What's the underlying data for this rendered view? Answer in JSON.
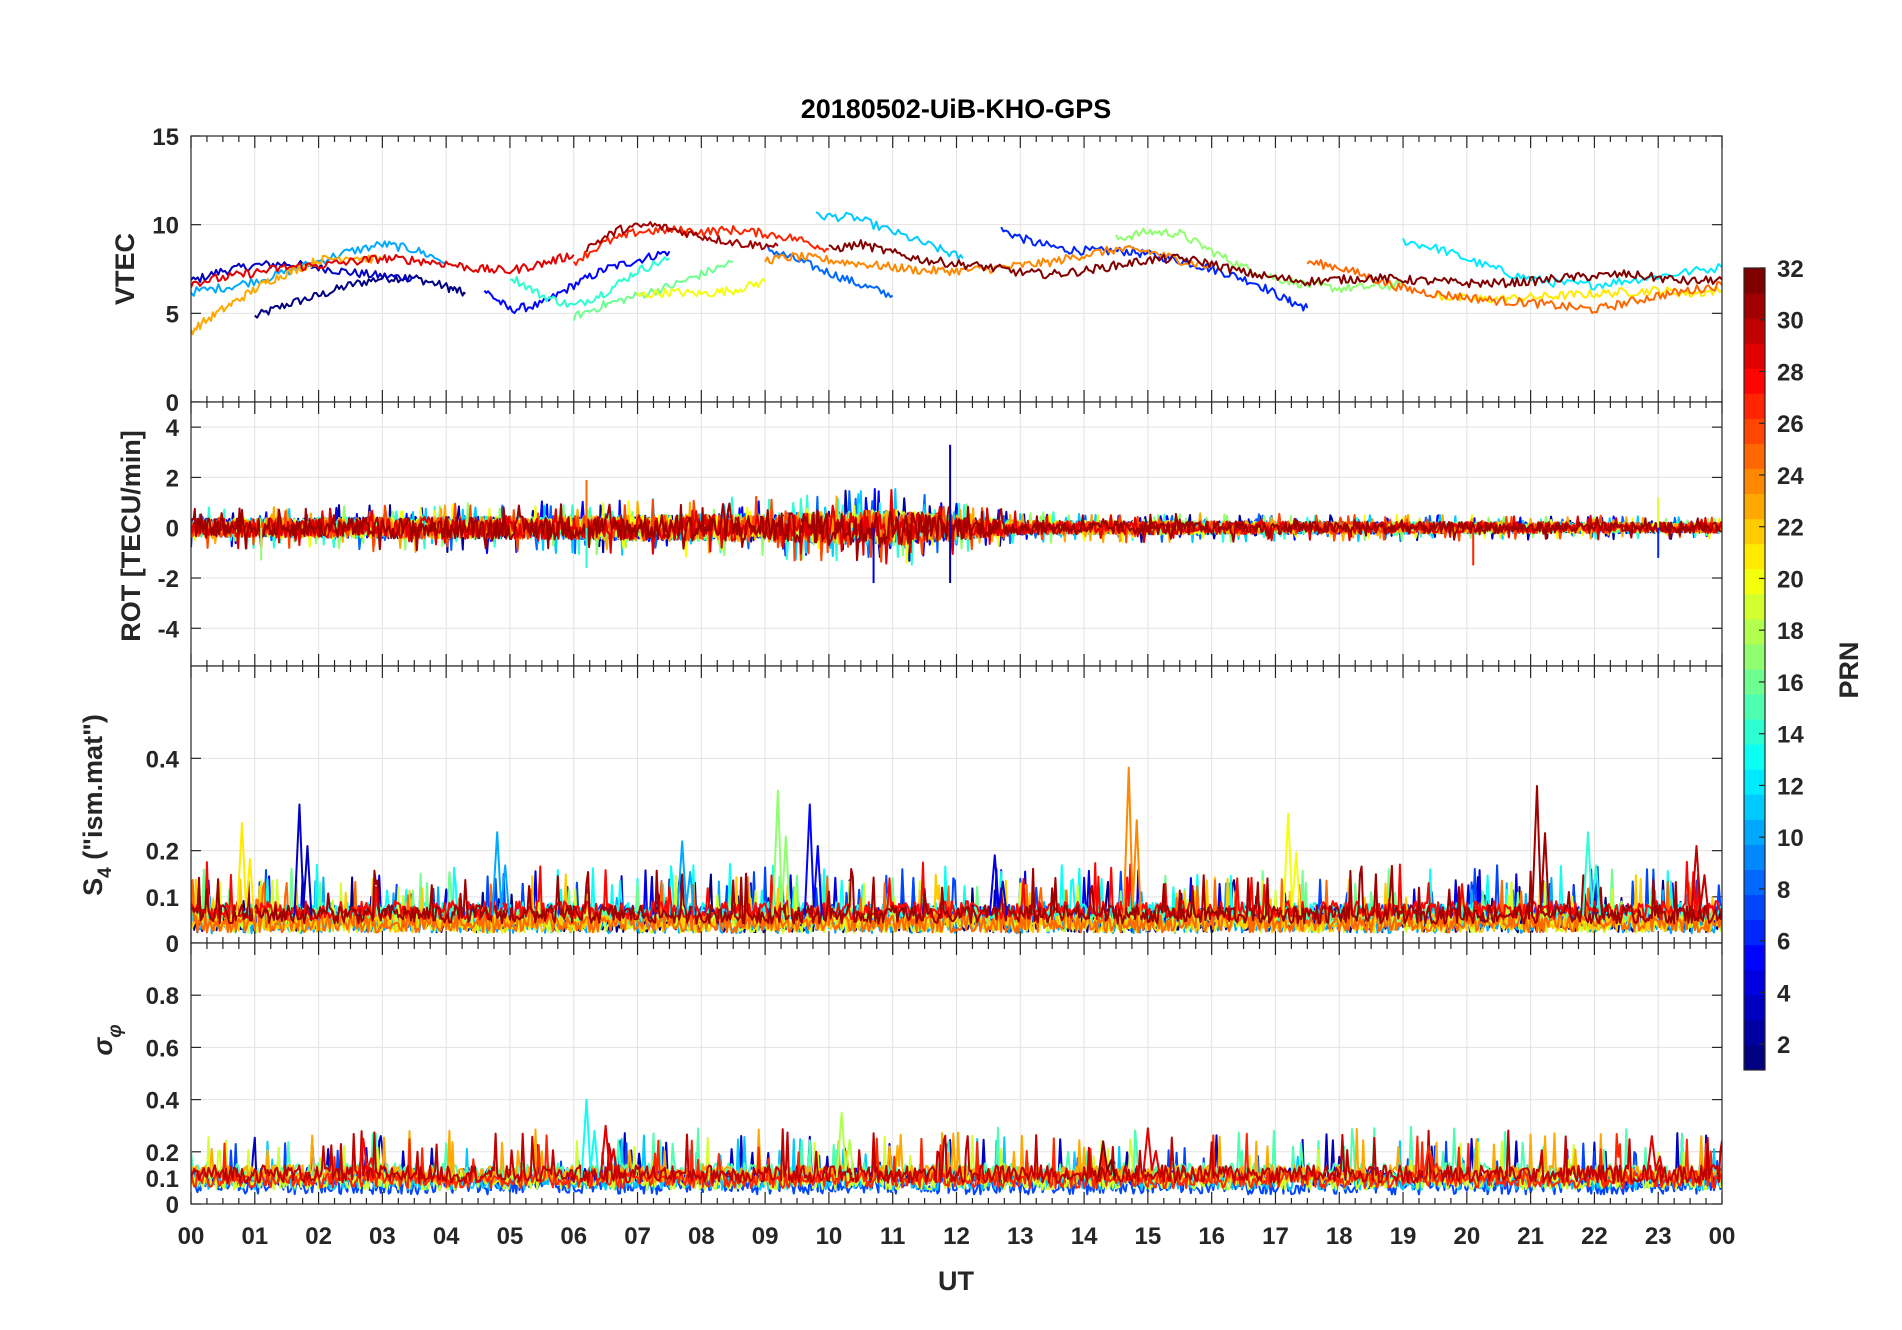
{
  "title": "20180502-UiB-KHO-GPS",
  "x_axis": {
    "label": "UT",
    "ticks": [
      "00",
      "01",
      "02",
      "03",
      "04",
      "05",
      "06",
      "07",
      "08",
      "09",
      "10",
      "11",
      "12",
      "13",
      "14",
      "15",
      "16",
      "17",
      "18",
      "19",
      "20",
      "21",
      "22",
      "23",
      "00"
    ],
    "range_hours": [
      0,
      24
    ]
  },
  "colorbar": {
    "label": "PRN",
    "ticks": [
      2,
      4,
      6,
      8,
      10,
      12,
      14,
      16,
      18,
      20,
      22,
      24,
      26,
      28,
      30,
      32
    ],
    "range": [
      1,
      32
    ],
    "colormap": "jet"
  },
  "chart_data": [
    {
      "type": "line",
      "panel": "vtec",
      "ylabel": "VTEC",
      "ylim": [
        0,
        15
      ],
      "yticks": [
        0,
        5,
        10,
        15
      ],
      "grid": true,
      "series": [
        {
          "prn": 1,
          "x": [
            1.0,
            1.5,
            2.0,
            2.5,
            3.0,
            3.5,
            4.0,
            4.3
          ],
          "y": [
            4.8,
            5.5,
            6.0,
            6.6,
            7.0,
            7.0,
            6.5,
            6.1
          ]
        },
        {
          "prn": 3,
          "x": [
            0.0,
            0.5,
            1.0,
            1.5,
            2.0,
            2.5,
            3.0,
            3.5
          ],
          "y": [
            6.8,
            7.4,
            7.7,
            7.8,
            7.6,
            7.3,
            7.1,
            7.0
          ]
        },
        {
          "prn": 5,
          "x": [
            4.6,
            5.0,
            5.5,
            6.0,
            6.5,
            7.0,
            7.5
          ],
          "y": [
            6.3,
            5.2,
            5.5,
            6.6,
            7.5,
            8.0,
            8.5
          ]
        },
        {
          "prn": 6,
          "x": [
            12.7,
            13.2,
            13.7,
            14.2,
            14.7,
            15.2,
            15.7,
            16.2,
            16.7,
            17.2,
            17.5
          ],
          "y": [
            9.7,
            9.0,
            8.6,
            8.5,
            8.5,
            8.2,
            7.8,
            7.3,
            6.7,
            5.7,
            5.3
          ]
        },
        {
          "prn": 8,
          "x": [
            9.0,
            9.5,
            10.0,
            10.5,
            11.0
          ],
          "y": [
            8.7,
            8.0,
            7.3,
            6.6,
            6.0
          ]
        },
        {
          "prn": 10,
          "x": [
            0.0,
            0.6,
            1.2,
            1.8,
            2.4,
            3.0,
            3.5,
            4.0
          ],
          "y": [
            6.2,
            6.5,
            7.0,
            7.7,
            8.4,
            8.9,
            8.6,
            7.9
          ]
        },
        {
          "prn": 11,
          "x": [
            9.8,
            10.4,
            11.0,
            11.6,
            12.1
          ],
          "y": [
            10.5,
            10.4,
            9.6,
            8.8,
            8.1
          ]
        },
        {
          "prn": 12,
          "x": [
            19.0,
            19.6,
            20.2,
            20.8,
            21.4,
            22.0,
            22.6,
            23.2,
            24.0
          ],
          "y": [
            9.1,
            8.6,
            7.8,
            7.1,
            6.7,
            6.6,
            6.9,
            7.2,
            7.6
          ]
        },
        {
          "prn": 14,
          "x": [
            5.0,
            5.5,
            6.0,
            6.5,
            7.0,
            7.5
          ],
          "y": [
            7.1,
            6.0,
            5.4,
            6.2,
            7.4,
            8.1
          ]
        },
        {
          "prn": 17,
          "x": [
            14.5,
            15.0,
            15.5,
            16.0,
            16.5,
            17.0,
            17.5,
            18.0,
            18.5,
            19.0
          ],
          "y": [
            9.2,
            9.6,
            9.5,
            8.5,
            7.6,
            7.0,
            6.6,
            6.4,
            6.5,
            6.6
          ]
        },
        {
          "prn": 16,
          "x": [
            6.0,
            6.5,
            7.0,
            7.5,
            8.0,
            8.5
          ],
          "y": [
            4.8,
            5.5,
            6.0,
            6.5,
            7.2,
            7.9
          ]
        },
        {
          "prn": 20,
          "x": [
            7.0,
            7.5,
            8.0,
            8.5,
            9.0
          ],
          "y": [
            6.0,
            6.2,
            6.1,
            6.3,
            6.8
          ]
        },
        {
          "prn": 21,
          "x": [
            19.5,
            20.0,
            20.5,
            21.0,
            21.5,
            22.0,
            22.5,
            23.0,
            23.5,
            24.0
          ],
          "y": [
            6.0,
            5.8,
            5.8,
            5.9,
            6.0,
            6.1,
            6.2,
            6.3,
            6.1,
            6.3
          ]
        },
        {
          "prn": 23,
          "x": [
            0.0,
            0.4,
            0.8,
            1.2,
            1.6,
            2.0,
            2.5,
            3.0
          ],
          "y": [
            4.0,
            5.0,
            5.9,
            6.8,
            7.4,
            8.0,
            8.2,
            8.0
          ]
        },
        {
          "prn": 24,
          "x": [
            9.0,
            9.5,
            10.0,
            10.5,
            11.0,
            11.5,
            12.0,
            12.5,
            13.0,
            13.5,
            14.0,
            14.5,
            15.0,
            15.5,
            16.0
          ],
          "y": [
            8.0,
            8.2,
            8.0,
            7.8,
            7.6,
            7.4,
            7.4,
            7.5,
            7.7,
            7.9,
            8.3,
            8.6,
            8.5,
            8.0,
            7.6
          ]
        },
        {
          "prn": 25,
          "x": [
            17.5,
            18.0,
            18.5,
            19.0,
            19.5,
            20.0,
            20.5,
            21.0,
            21.5,
            22.0,
            22.5,
            23.0,
            23.5,
            24.0
          ],
          "y": [
            7.9,
            7.6,
            7.0,
            6.4,
            6.1,
            5.9,
            5.7,
            5.6,
            5.4,
            5.2,
            5.6,
            6.0,
            6.3,
            6.6
          ]
        },
        {
          "prn": 27,
          "x": [
            6.0,
            6.5,
            7.0,
            7.5,
            8.0,
            8.5,
            9.0,
            9.5,
            10.0
          ],
          "y": [
            7.9,
            9.0,
            9.6,
            9.7,
            9.6,
            9.7,
            9.5,
            9.2,
            8.6
          ]
        },
        {
          "prn": 29,
          "x": [
            0.0,
            0.5,
            1.0,
            1.5,
            2.0,
            2.5,
            3.0,
            3.5,
            4.0,
            4.5,
            5.0,
            5.5,
            6.0
          ],
          "y": [
            6.7,
            7.0,
            7.3,
            7.6,
            7.7,
            7.9,
            8.1,
            8.0,
            7.8,
            7.5,
            7.4,
            7.8,
            8.3
          ]
        },
        {
          "prn": 31,
          "x": [
            6.2,
            6.7,
            7.2,
            7.7,
            8.2,
            8.7,
            9.2
          ],
          "y": [
            8.7,
            9.7,
            10.0,
            9.6,
            9.2,
            8.9,
            8.8
          ]
        },
        {
          "prn": 32,
          "x": [
            10.0,
            10.5,
            11.0,
            11.5,
            12.0,
            12.5,
            13.0,
            13.5,
            14.0,
            14.5,
            15.0,
            15.5,
            16.0,
            16.5,
            17.0,
            17.5,
            18.0,
            18.5,
            19.0,
            19.5,
            20.0,
            20.5,
            21.0,
            21.5,
            22.0,
            22.5,
            23.0,
            23.5,
            24.0
          ],
          "y": [
            8.6,
            8.9,
            8.4,
            8.0,
            7.8,
            7.6,
            7.3,
            7.2,
            7.4,
            7.7,
            8.0,
            8.1,
            7.8,
            7.3,
            7.0,
            6.8,
            6.9,
            7.0,
            6.9,
            6.8,
            6.7,
            6.7,
            6.8,
            7.0,
            7.1,
            7.2,
            7.0,
            6.8,
            6.9
          ]
        }
      ]
    },
    {
      "type": "line",
      "panel": "rot",
      "ylabel": "ROT [TECU/min]",
      "ylim": [
        -5.5,
        5
      ],
      "yticks": [
        -4,
        -2,
        0,
        2,
        4
      ],
      "grid": true,
      "noise_envelope": {
        "x": [
          0,
          6,
          9,
          11,
          13,
          24
        ],
        "amplitude": [
          0.45,
          0.6,
          0.7,
          0.9,
          0.35,
          0.25
        ]
      },
      "spikes": [
        {
          "prn": 2,
          "x": 11.9,
          "y": 3.3
        },
        {
          "prn": 2,
          "x": 11.9,
          "y": -2.2
        },
        {
          "prn": 4,
          "x": 10.7,
          "y": -2.2
        },
        {
          "prn": 25,
          "x": 6.2,
          "y": 1.9
        },
        {
          "prn": 14,
          "x": 6.2,
          "y": -1.6
        },
        {
          "prn": 27,
          "x": 20.1,
          "y": -1.5
        },
        {
          "prn": 19,
          "x": 23.0,
          "y": 1.2
        },
        {
          "prn": 6,
          "x": 23.0,
          "y": -1.2
        },
        {
          "prn": 17,
          "x": 1.1,
          "y": -1.3
        }
      ]
    },
    {
      "type": "line",
      "panel": "s4",
      "ylabel": "S₄ (\"ism.mat\")",
      "ylim": [
        0,
        0.6
      ],
      "yticks": [
        0,
        0.1,
        0.2,
        0.4
      ],
      "grid": true,
      "baseline": 0.06,
      "spikes": [
        {
          "prn": 21,
          "x": 0.8,
          "y": 0.26
        },
        {
          "prn": 3,
          "x": 1.7,
          "y": 0.3
        },
        {
          "prn": 10,
          "x": 4.8,
          "y": 0.24
        },
        {
          "prn": 10,
          "x": 7.7,
          "y": 0.22
        },
        {
          "prn": 17,
          "x": 9.2,
          "y": 0.33
        },
        {
          "prn": 5,
          "x": 9.7,
          "y": 0.3
        },
        {
          "prn": 4,
          "x": 12.6,
          "y": 0.19
        },
        {
          "prn": 24,
          "x": 14.7,
          "y": 0.38
        },
        {
          "prn": 20,
          "x": 17.2,
          "y": 0.28
        },
        {
          "prn": 31,
          "x": 21.1,
          "y": 0.34
        },
        {
          "prn": 14,
          "x": 21.9,
          "y": 0.24
        },
        {
          "prn": 30,
          "x": 23.6,
          "y": 0.21
        }
      ]
    },
    {
      "type": "line",
      "panel": "sigma_phi",
      "ylabel": "σ_φ",
      "ylim": [
        0,
        1
      ],
      "yticks": [
        0,
        0.1,
        0.2,
        0.4,
        0.6,
        0.8
      ],
      "grid": true,
      "baseline": 0.1,
      "spikes": [
        {
          "prn": 28,
          "x": 2.7,
          "y": 0.25
        },
        {
          "prn": 13,
          "x": 6.2,
          "y": 0.4
        },
        {
          "prn": 29,
          "x": 6.5,
          "y": 0.3
        },
        {
          "prn": 18,
          "x": 10.2,
          "y": 0.35
        },
        {
          "prn": 32,
          "x": 14.3,
          "y": 0.24
        },
        {
          "prn": 29,
          "x": 15.0,
          "y": 0.29
        },
        {
          "prn": 27,
          "x": 19.4,
          "y": 0.22
        },
        {
          "prn": 29,
          "x": 22.9,
          "y": 0.26
        }
      ]
    }
  ]
}
